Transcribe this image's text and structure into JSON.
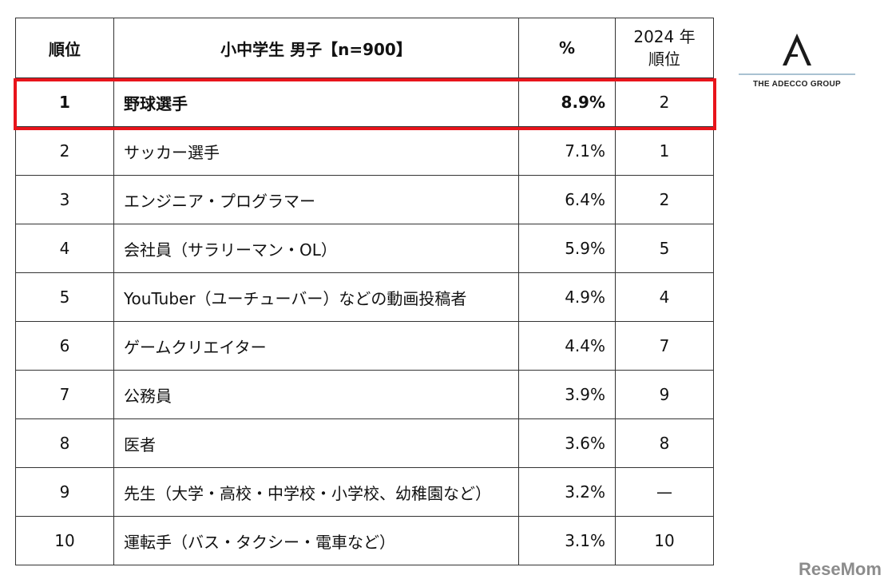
{
  "table": {
    "headers": {
      "rank": "順位",
      "category": "小中学生 男子【n=900】",
      "percent": "%",
      "prev_line1": "2024 年",
      "prev_line2": "順位"
    },
    "rows": [
      {
        "rank": "1",
        "name": "野球選手",
        "percent": "8.9%",
        "prev": "2"
      },
      {
        "rank": "2",
        "name": "サッカー選手",
        "percent": "7.1%",
        "prev": "1"
      },
      {
        "rank": "3",
        "name": "エンジニア・プログラマー",
        "percent": "6.4%",
        "prev": "2"
      },
      {
        "rank": "4",
        "name": "会社員（サラリーマン・OL）",
        "percent": "5.9%",
        "prev": "5"
      },
      {
        "rank": "5",
        "name": "YouTuber（ユーチューバー）などの動画投稿者",
        "percent": "4.9%",
        "prev": "4"
      },
      {
        "rank": "6",
        "name": "ゲームクリエイター",
        "percent": "4.4%",
        "prev": "7"
      },
      {
        "rank": "7",
        "name": "公務員",
        "percent": "3.9%",
        "prev": "9"
      },
      {
        "rank": "8",
        "name": "医者",
        "percent": "3.6%",
        "prev": "8"
      },
      {
        "rank": "9",
        "name": "先生（大学・高校・中学校・小学校、幼稚園など）",
        "percent": "3.2%",
        "prev": "—"
      },
      {
        "rank": "10",
        "name": "運転手（バス・タクシー・電車など）",
        "percent": "3.1%",
        "prev": "10"
      }
    ]
  },
  "highlight": {
    "color": "#e8141b",
    "row": "1"
  },
  "logo": {
    "text": "THE ADECCO GROUP",
    "icon": "adecco-a-logo-icon"
  },
  "watermark": {
    "text": "ReseMom"
  }
}
